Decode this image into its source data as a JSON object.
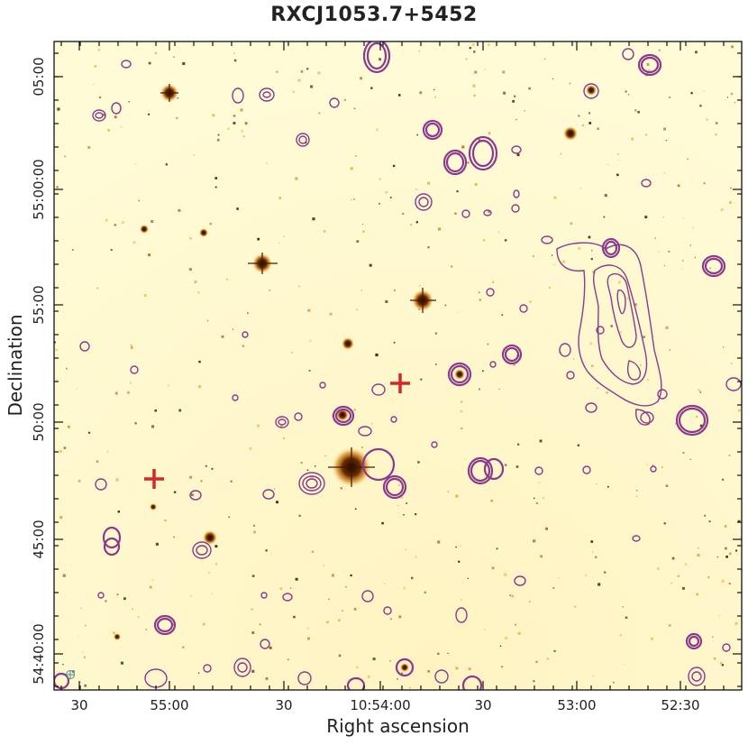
{
  "title": "RXCJ1053.7+5452",
  "xlabel": "Right ascension",
  "ylabel": "Declination",
  "x_tick_labels": [
    "30",
    "55:00",
    "30",
    "10:54:00",
    "30",
    "53:00",
    "52:30"
  ],
  "y_tick_labels": [
    "05:00",
    "55:00:00",
    "55:00",
    "50:00",
    "45:00",
    "54:40:00"
  ],
  "colors": {
    "background": "#fffbd0",
    "contour": "#8a3a8e",
    "marker": "#d62728",
    "star": "#2a1200"
  },
  "markers": [
    "red-cross",
    "red-cross"
  ],
  "beam_icon": "beam-ellipse-icon"
}
